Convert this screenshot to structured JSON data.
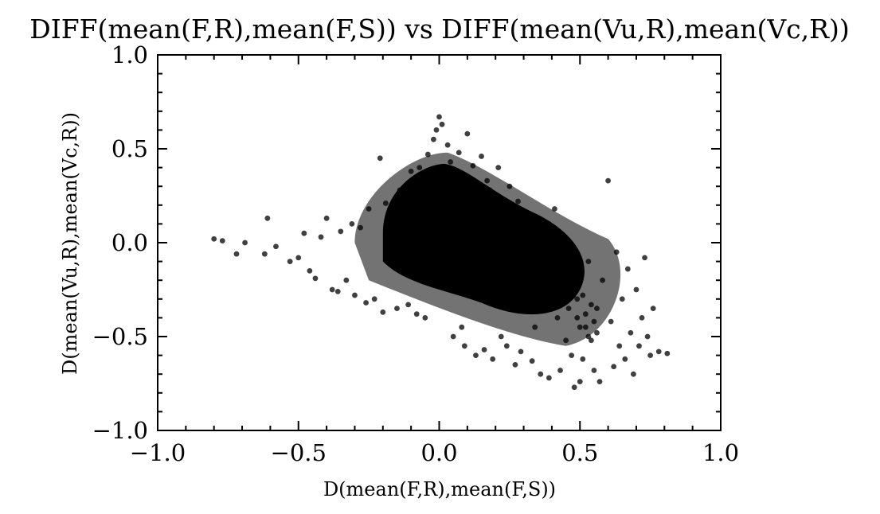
{
  "chart_data": {
    "type": "scatter",
    "title": "DIFF(mean(F,R),mean(F,S)) vs DIFF(mean(Vu,R),mean(Vc,R))",
    "xlabel": "D(mean(F,R),mean(F,S))",
    "ylabel": "D(mean(Vu,R),mean(Vc,R))",
    "xlim": [
      -1.0,
      1.0
    ],
    "ylim": [
      -1.0,
      1.0
    ],
    "xticks": [
      -1.0,
      -0.5,
      0.0,
      0.5,
      1.0
    ],
    "yticks": [
      -1.0,
      -0.5,
      0.0,
      0.5,
      1.0
    ],
    "xtick_labels": [
      "−1.0",
      "−0.5",
      "0.0",
      "0.5",
      "1.0"
    ],
    "ytick_labels": [
      "−1.0",
      "−0.5",
      "0.0",
      "0.5",
      "1.0"
    ],
    "grid": false,
    "legend": "none",
    "marker_color": "#000000",
    "series": [
      {
        "x": [
          -0.8,
          -0.77,
          -0.72,
          -0.69,
          -0.62,
          -0.61,
          -0.58,
          -0.53,
          -0.5,
          -0.48,
          -0.46,
          -0.44,
          -0.42,
          -0.4,
          -0.38,
          -0.36,
          -0.35,
          -0.33,
          -0.31,
          -0.3,
          -0.28,
          -0.26,
          -0.25,
          -0.23,
          -0.21,
          -0.2,
          -0.19,
          -0.17,
          -0.15,
          -0.14,
          -0.12,
          -0.11,
          -0.1,
          -0.08,
          -0.07,
          -0.06,
          -0.05,
          -0.04,
          -0.03,
          -0.02,
          -0.01,
          0.0,
          0.0,
          0.01,
          0.02,
          0.03,
          0.04,
          0.05,
          0.06,
          0.07,
          0.08,
          0.09,
          0.1,
          0.11,
          0.12,
          0.13,
          0.14,
          0.15,
          0.16,
          0.17,
          0.18,
          0.19,
          0.2,
          0.21,
          0.22,
          0.23,
          0.24,
          0.25,
          0.26,
          0.27,
          0.28,
          0.29,
          0.3,
          0.31,
          0.32,
          0.33,
          0.34,
          0.35,
          0.36,
          0.37,
          0.38,
          0.39,
          0.4,
          0.41,
          0.42,
          0.43,
          0.44,
          0.45,
          0.46,
          0.47,
          0.48,
          0.49,
          0.5,
          0.51,
          0.52,
          0.53,
          0.54,
          0.55,
          0.56,
          0.57,
          0.58,
          0.6,
          0.61,
          0.62,
          0.63,
          0.64,
          0.65,
          0.66,
          0.67,
          0.68,
          0.69,
          0.7,
          0.71,
          0.72,
          0.73,
          0.74,
          0.75,
          0.76,
          0.78,
          0.81,
          -0.09,
          -0.02,
          0.01,
          0.03,
          0.05,
          0.06,
          0.07,
          0.15,
          0.25,
          0.32,
          0.36,
          0.39,
          0.4,
          0.44,
          0.46,
          0.48,
          0.49,
          0.5,
          0.51,
          0.52,
          0.53,
          0.54,
          0.55,
          0.56
        ],
        "y": [
          0.02,
          0.01,
          -0.06,
          0.0,
          -0.06,
          0.13,
          -0.02,
          -0.1,
          -0.08,
          0.05,
          -0.15,
          -0.19,
          0.03,
          0.13,
          -0.25,
          -0.26,
          0.06,
          -0.2,
          0.1,
          -0.28,
          0.08,
          -0.32,
          0.18,
          -0.3,
          0.45,
          -0.37,
          0.21,
          0.05,
          -0.35,
          0.28,
          0.15,
          -0.33,
          0.38,
          -0.38,
          0.4,
          0.22,
          -0.4,
          0.47,
          0.3,
          0.55,
          0.6,
          0.67,
          0.1,
          0.63,
          -0.05,
          0.52,
          0.43,
          -0.5,
          0.36,
          0.48,
          -0.45,
          -0.55,
          0.58,
          0.25,
          0.41,
          -0.6,
          0.18,
          0.46,
          -0.57,
          0.33,
          0.28,
          -0.62,
          0.21,
          0.4,
          -0.5,
          0.15,
          -0.55,
          0.3,
          0.11,
          -0.65,
          0.22,
          -0.58,
          0.03,
          -0.35,
          0.12,
          -0.63,
          -0.45,
          0.08,
          -0.7,
          0.02,
          -0.3,
          -0.72,
          -0.05,
          0.18,
          -0.4,
          -0.68,
          -0.22,
          -0.52,
          -0.12,
          -0.6,
          -0.77,
          -0.3,
          -0.74,
          -0.62,
          -0.45,
          -0.1,
          -0.52,
          -0.68,
          -0.35,
          -0.74,
          -0.2,
          0.33,
          -0.42,
          -0.66,
          -0.05,
          -0.55,
          -0.3,
          -0.62,
          -0.14,
          -0.48,
          -0.7,
          -0.25,
          -0.55,
          -0.4,
          -0.08,
          -0.5,
          -0.6,
          -0.35,
          -0.58,
          -0.59,
          0.1,
          0.25,
          0.3,
          -0.05,
          0.15,
          0.05,
          -0.15,
          0.18,
          0.05,
          -0.05,
          -0.1,
          0.1,
          -0.25,
          -0.3,
          -0.35,
          -0.2,
          -0.4,
          -0.45,
          -0.28,
          -0.38,
          -0.5,
          -0.33,
          -0.42,
          -0.48
        ]
      }
    ],
    "dense_cluster": {
      "note_x_center": 0.05,
      "note_y_center": 0.05
    }
  }
}
